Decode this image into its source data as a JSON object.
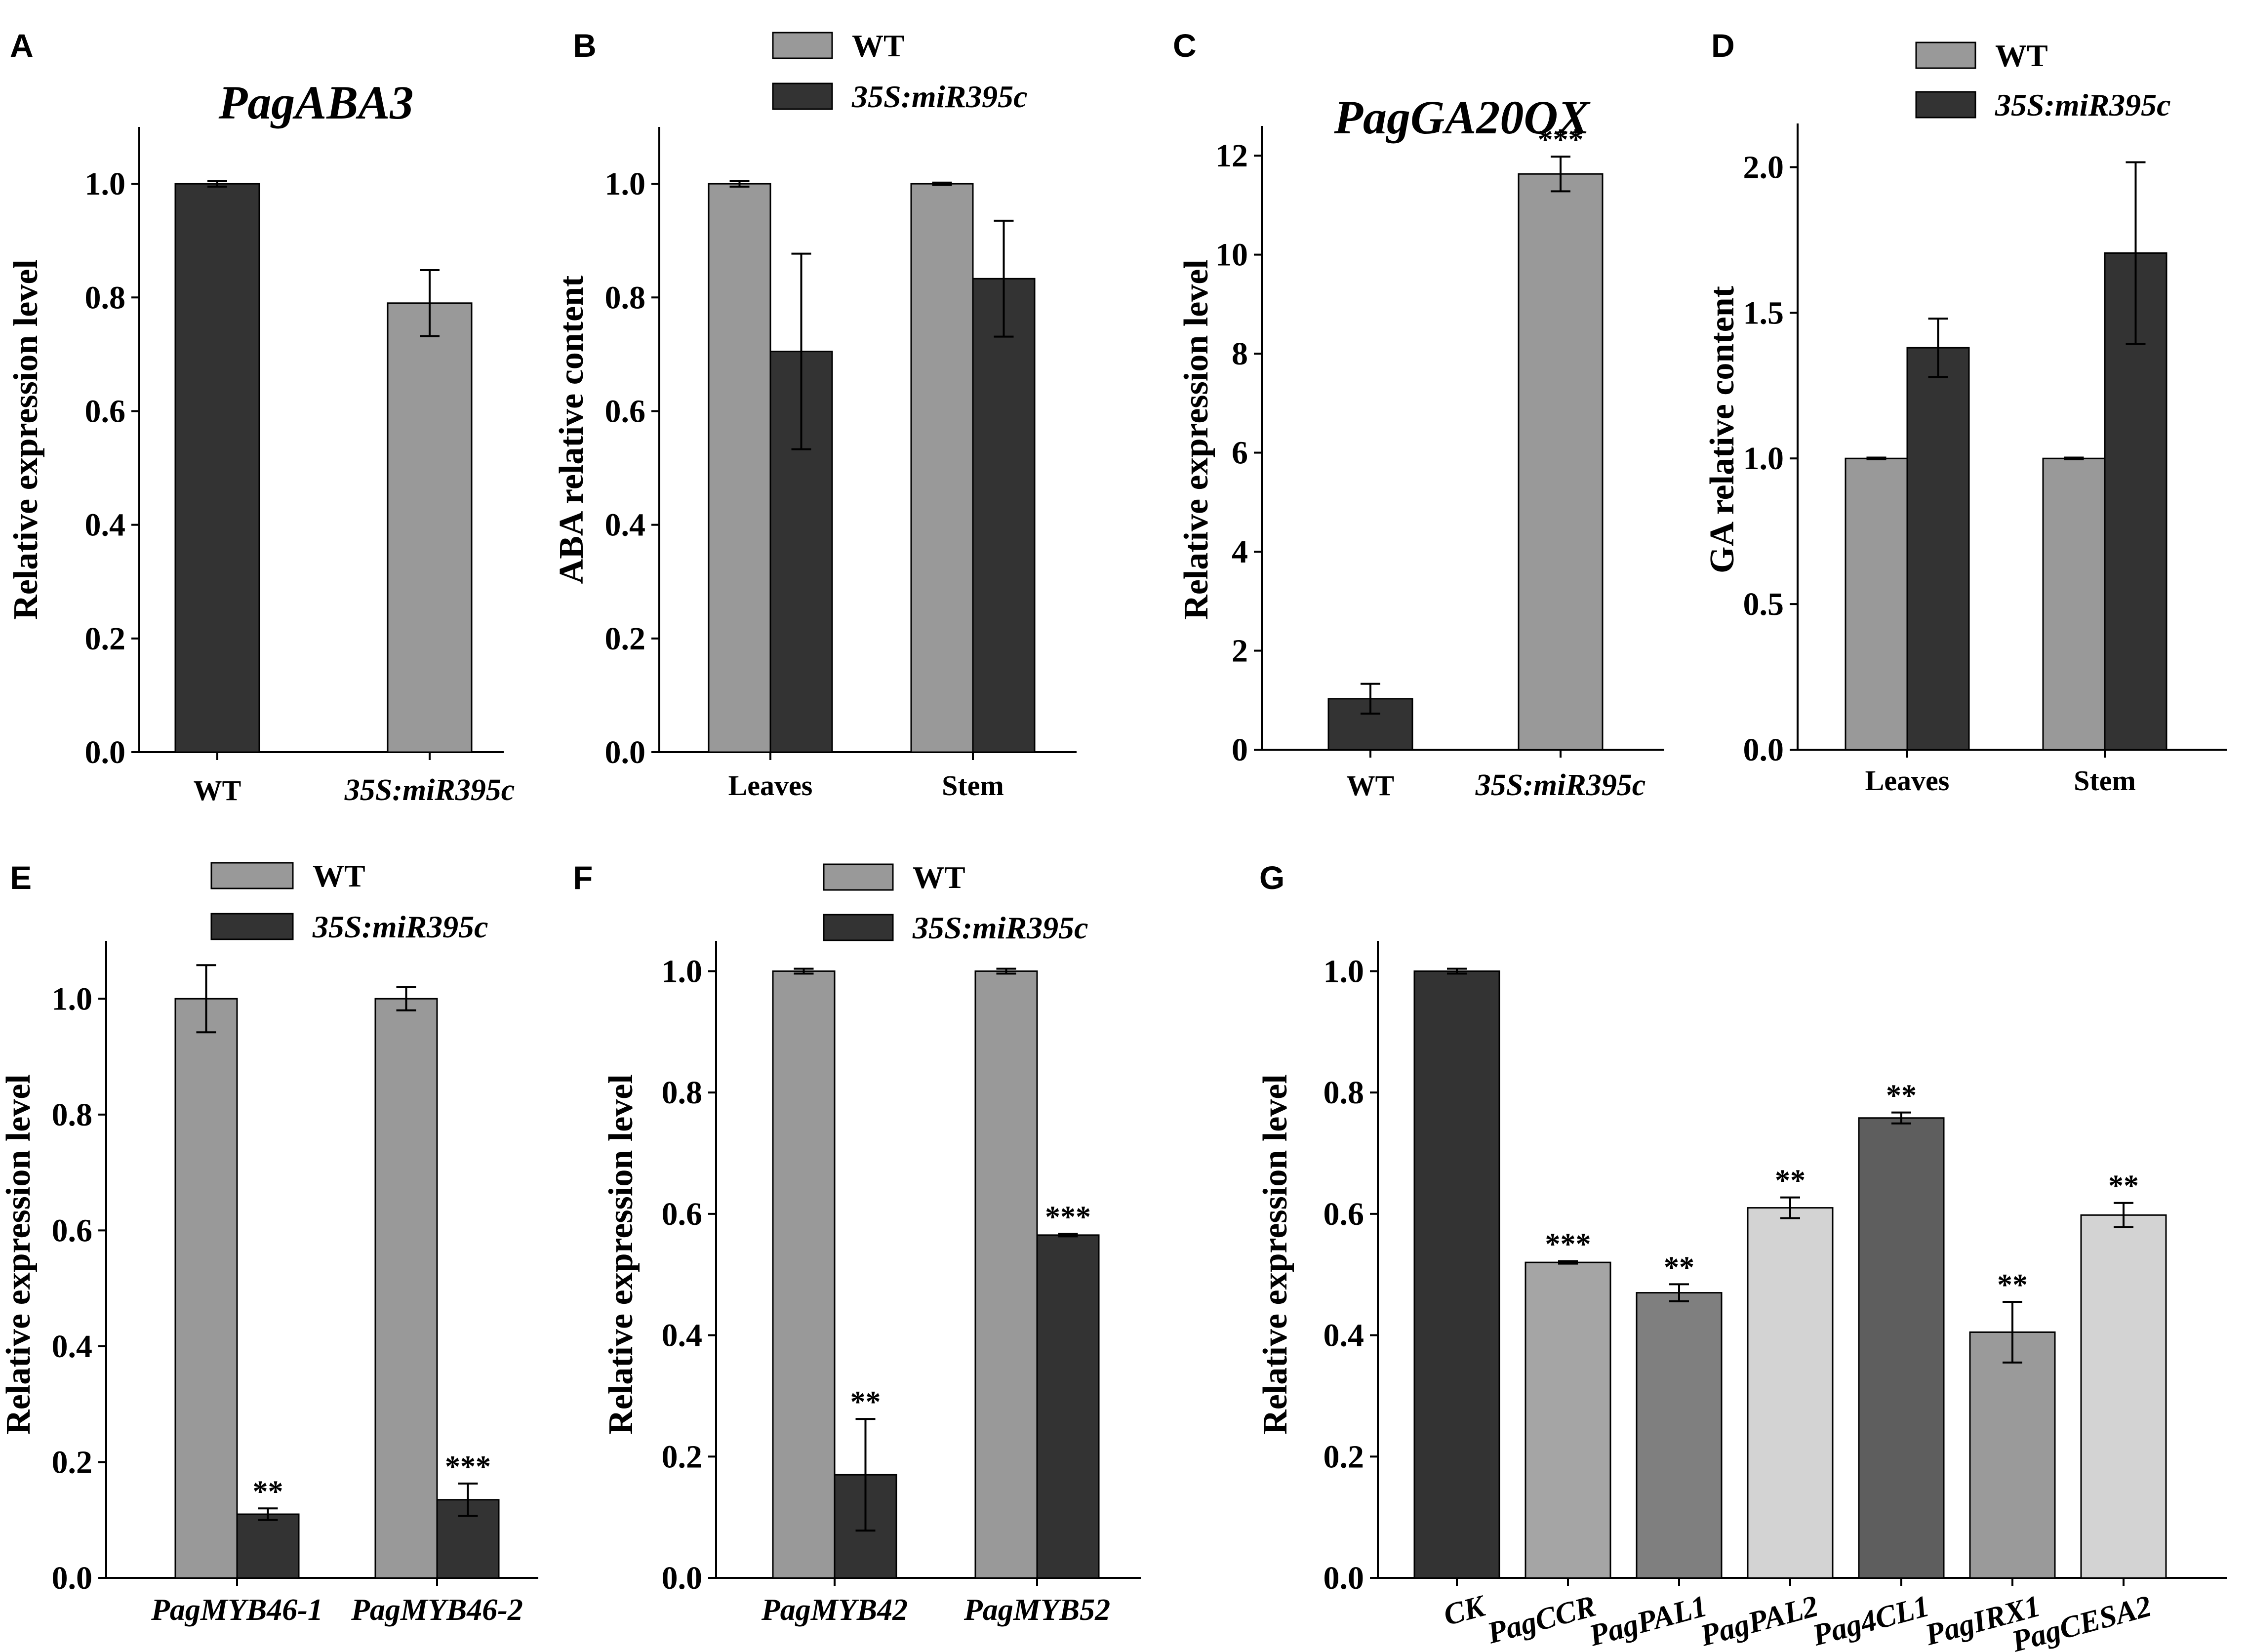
{
  "colors": {
    "wt": "#999999",
    "mir": "#333333",
    "ck": "#333333",
    "g_mid": "#a5a5a5",
    "g_dark": "#7f7f7f",
    "g_light": "#d3d3d3",
    "g_darker": "#5e5e5e",
    "g_med2": "#9a9a9a"
  },
  "chart_data": [
    {
      "panel": "A",
      "type": "bar",
      "title": "PagABA3",
      "ylabel": "Relative expression level",
      "ylim": [
        0,
        1.1
      ],
      "yticks": [
        "0.0",
        "0.2",
        "0.4",
        "0.6",
        "0.8",
        "1.0"
      ],
      "categories": [
        "WT",
        "35S:miR395c"
      ],
      "values": [
        1.0,
        0.79
      ],
      "errors": [
        0.005,
        0.058
      ],
      "colors": [
        "#333333",
        "#999999"
      ],
      "sig": [
        "",
        ""
      ]
    },
    {
      "panel": "B",
      "type": "bar",
      "title": "",
      "ylabel": "ABA relative content",
      "ylim": [
        0,
        1.1
      ],
      "yticks": [
        "0.0",
        "0.2",
        "0.4",
        "0.6",
        "0.8",
        "1.0"
      ],
      "categories": [
        "Leaves",
        "Stem"
      ],
      "legend": [
        "WT",
        "35S:miR395c"
      ],
      "series": [
        {
          "name": "WT",
          "values": [
            1.0,
            1.0
          ],
          "errors": [
            0.005,
            0.002
          ],
          "sig": [
            "",
            ""
          ]
        },
        {
          "name": "35S:miR395c",
          "values": [
            0.705,
            0.833
          ],
          "errors": [
            0.172,
            0.102
          ],
          "sig": [
            "",
            ""
          ]
        }
      ]
    },
    {
      "panel": "C",
      "type": "bar",
      "title": "PagGA20OX",
      "ylabel": "Relative expression level",
      "ylim": [
        0,
        12.6
      ],
      "yticks": [
        "0",
        "2",
        "4",
        "6",
        "8",
        "10",
        "12"
      ],
      "categories": [
        "WT",
        "35S:miR395c"
      ],
      "values": [
        1.03,
        11.63
      ],
      "errors": [
        0.3,
        0.35
      ],
      "colors": [
        "#333333",
        "#999999"
      ],
      "sig": [
        "",
        "***"
      ]
    },
    {
      "panel": "D",
      "type": "bar",
      "title": "",
      "ylabel": "GA relative content",
      "ylim": [
        0,
        2.15
      ],
      "yticks": [
        "0.0",
        "0.5",
        "1.0",
        "1.5",
        "2.0"
      ],
      "categories": [
        "Leaves",
        "Stem"
      ],
      "legend": [
        "WT",
        "35S:miR395c"
      ],
      "series": [
        {
          "name": "WT",
          "values": [
            1.0,
            1.0
          ],
          "errors": [
            0.003,
            0.003
          ],
          "sig": [
            "",
            ""
          ]
        },
        {
          "name": "35S:miR395c",
          "values": [
            1.38,
            1.705
          ],
          "errors": [
            0.1,
            0.312
          ],
          "sig": [
            "",
            ""
          ]
        }
      ]
    },
    {
      "panel": "E",
      "type": "bar",
      "title": "",
      "ylabel": "Relative expression level",
      "ylim": [
        0,
        1.1
      ],
      "yticks": [
        "0.0",
        "0.2",
        "0.4",
        "0.6",
        "0.8",
        "1.0"
      ],
      "categories": [
        "PagMYB46-1",
        "PagMYB46-2"
      ],
      "legend": [
        "WT",
        "35S:miR395c"
      ],
      "series": [
        {
          "name": "WT",
          "values": [
            1.0,
            1.0
          ],
          "errors": [
            0.058,
            0.02
          ],
          "sig": [
            "",
            ""
          ]
        },
        {
          "name": "35S:miR395c",
          "values": [
            0.11,
            0.135
          ],
          "errors": [
            0.01,
            0.028
          ],
          "sig": [
            "**",
            "***"
          ]
        }
      ]
    },
    {
      "panel": "F",
      "type": "bar",
      "title": "",
      "ylabel": "Relative expression level",
      "ylim": [
        0,
        1.05
      ],
      "yticks": [
        "0.0",
        "0.2",
        "0.4",
        "0.6",
        "0.8",
        "1.0"
      ],
      "categories": [
        "PagMYB42",
        "PagMYB52"
      ],
      "legend": [
        "WT",
        "35S:miR395c"
      ],
      "series": [
        {
          "name": "WT",
          "values": [
            1.0,
            1.0
          ],
          "errors": [
            0.004,
            0.004
          ],
          "sig": [
            "",
            ""
          ]
        },
        {
          "name": "35S:miR395c",
          "values": [
            0.17,
            0.565
          ],
          "errors": [
            0.092,
            0.002
          ],
          "sig": [
            "**",
            "***"
          ]
        }
      ]
    },
    {
      "panel": "G",
      "type": "bar",
      "title": "",
      "ylabel": "Relative expression level",
      "ylim": [
        0,
        1.05
      ],
      "yticks": [
        "0.0",
        "0.2",
        "0.4",
        "0.6",
        "0.8",
        "1.0"
      ],
      "categories": [
        "CK",
        "PagCCR",
        "PagPAL1",
        "PagPAL2",
        "Pag4CL1",
        "PagIRX1",
        "PagCESA2"
      ],
      "values": [
        1.0,
        0.52,
        0.47,
        0.61,
        0.758,
        0.405,
        0.598
      ],
      "errors": [
        0.004,
        0.002,
        0.014,
        0.017,
        0.009,
        0.05,
        0.02
      ],
      "colors": [
        "#333333",
        "#a5a5a5",
        "#7f7f7f",
        "#d3d3d3",
        "#5e5e5e",
        "#9a9a9a",
        "#d3d3d3"
      ],
      "sig": [
        "",
        "***",
        "**",
        "**",
        "**",
        "**",
        "**"
      ]
    }
  ]
}
